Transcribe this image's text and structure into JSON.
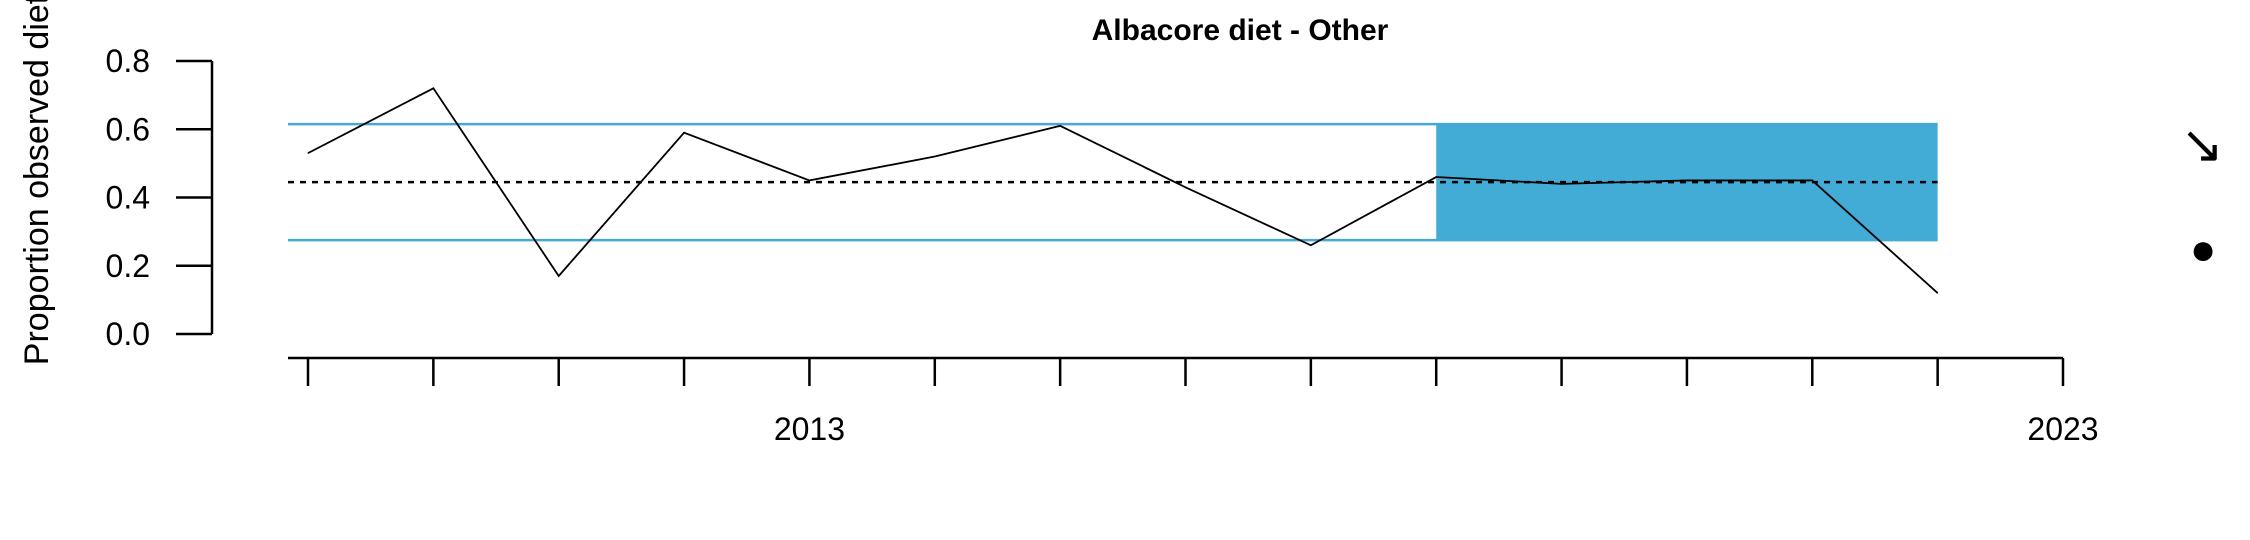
{
  "chart_data": {
    "type": "line",
    "title": "Albacore diet - Other",
    "ylabel": "Proportion observed diet",
    "xlabel": "",
    "ylim": [
      0,
      0.8
    ],
    "xlim": [
      2009,
      2023
    ],
    "y_ticks": [
      0.0,
      0.2,
      0.4,
      0.6,
      0.8
    ],
    "y_tick_labels": [
      "0.0",
      "0.2",
      "0.4",
      "0.6",
      "0.8"
    ],
    "x_ticks": [
      2009,
      2010,
      2011,
      2012,
      2013,
      2014,
      2015,
      2016,
      2017,
      2018,
      2019,
      2020,
      2021,
      2022,
      2023
    ],
    "x_tick_labels": [
      {
        "value": 2013,
        "label": "2013"
      },
      {
        "value": 2023,
        "label": "2023"
      }
    ],
    "series": [
      {
        "x": [
          2009,
          2010,
          2011,
          2012,
          2013,
          2014,
          2015,
          2016,
          2017,
          2018,
          2019,
          2020,
          2021,
          2022
        ],
        "values": [
          0.53,
          0.72,
          0.17,
          0.59,
          0.45,
          0.52,
          0.61,
          0.43,
          0.26,
          0.46,
          0.44,
          0.45,
          0.45,
          0.12
        ]
      }
    ],
    "mean_line": 0.445,
    "upper_bound": 0.615,
    "lower_bound": 0.275,
    "recent_window": [
      2018,
      2022
    ],
    "trend_symbol": "↘",
    "mean_symbol": "●",
    "grid": false,
    "colors": {
      "bounds": "#45a9d6",
      "recent_fill": "#43acd6",
      "series": "#000000",
      "mean": "#000000"
    }
  }
}
